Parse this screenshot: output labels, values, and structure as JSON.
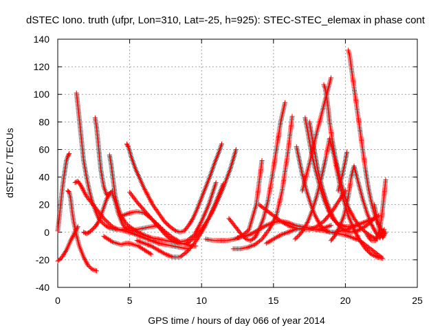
{
  "chart_data": {
    "type": "scatter",
    "title": "dSTEC Iono. truth (ufpr, Lon=310, Lat=-25, h=925): STEC-STEC_elemax in phase cont",
    "xlabel": "GPS time / hours of day 066 of year 2014",
    "ylabel": "dSTEC  / TECUs",
    "xlim": [
      0,
      25
    ],
    "ylim": [
      -40,
      140
    ],
    "xticks": [
      0,
      5,
      10,
      15,
      20,
      25
    ],
    "xtick_labels": [
      "0",
      "5",
      "10",
      "15",
      "20",
      "25"
    ],
    "yticks": [
      -40,
      -20,
      0,
      20,
      40,
      60,
      80,
      100,
      120,
      140
    ],
    "ytick_labels": [
      "-40",
      "-20",
      "0",
      "20",
      "40",
      "60",
      "80",
      "100",
      "120",
      "140"
    ],
    "grid": true,
    "marker": "plus",
    "color": "#ff0000",
    "series": [
      {
        "x": [
          0.0,
          0.1,
          0.2,
          0.3,
          0.4,
          0.5,
          0.6,
          0.7,
          0.8
        ],
        "y": [
          1,
          10,
          20,
          30,
          38,
          45,
          52,
          55,
          57
        ]
      },
      {
        "x": [
          0.0,
          0.3,
          0.6,
          0.9,
          1.2,
          1.4
        ],
        "y": [
          -21,
          -18,
          -13,
          -6,
          0,
          4
        ]
      },
      {
        "x": [
          0.7,
          0.8,
          0.9,
          1.0,
          1.1,
          1.3,
          1.5,
          1.8,
          2.1,
          2.4,
          2.7
        ],
        "y": [
          30,
          29,
          24,
          15,
          8,
          -2,
          -10,
          -18,
          -24,
          -27,
          -28
        ]
      },
      {
        "x": [
          1.3,
          1.4,
          1.5,
          1.6,
          1.7,
          1.8,
          2.0,
          2.2,
          2.4,
          2.6,
          2.8,
          3.0,
          3.3,
          3.6,
          4.0,
          4.5,
          5.0
        ],
        "y": [
          101,
          92,
          82,
          72,
          62,
          52,
          40,
          30,
          22,
          16,
          11,
          8,
          5,
          3,
          2,
          2,
          3
        ]
      },
      {
        "x": [
          1.2,
          1.4,
          1.6,
          1.8,
          2.0,
          2.3,
          2.6,
          2.9,
          3.2,
          3.5,
          3.8,
          4.2,
          4.6,
          5.0,
          5.5,
          6.0,
          6.5,
          7.0,
          7.5,
          8.0,
          8.5,
          9.0
        ],
        "y": [
          36,
          37,
          34,
          30,
          26,
          22,
          18,
          14,
          10,
          7,
          4,
          2,
          1,
          0,
          -2,
          -4,
          -6,
          -8,
          -9,
          -10,
          -11,
          -12
        ]
      },
      {
        "x": [
          2.6,
          2.7,
          2.8,
          2.9,
          3.0,
          3.2,
          3.4,
          3.6,
          3.8
        ],
        "y": [
          83,
          76,
          66,
          55,
          45,
          33,
          27,
          28,
          30
        ]
      },
      {
        "x": [
          1.8,
          2.0,
          2.2,
          2.4,
          2.6,
          2.8,
          3.0,
          3.2,
          3.4,
          3.6,
          3.8,
          4.0,
          4.2,
          4.5,
          4.8,
          5.1,
          5.5,
          6.0,
          6.5,
          7.0
        ],
        "y": [
          0,
          -1,
          0,
          2,
          4,
          7,
          12,
          18,
          24,
          28,
          28,
          22,
          14,
          6,
          2,
          1,
          2,
          3,
          4,
          5
        ]
      },
      {
        "x": [
          3.6,
          3.7,
          3.8,
          3.9,
          4.0,
          4.2,
          4.4,
          4.7,
          5.0,
          5.3,
          5.6,
          6.0,
          6.5,
          7.0,
          7.5,
          8.0,
          8.5,
          9.0,
          9.3,
          9.6
        ],
        "y": [
          56,
          50,
          42,
          34,
          26,
          18,
          12,
          7,
          4,
          2,
          0,
          -2,
          -4,
          -5,
          -6,
          -7,
          -8,
          -9,
          -10,
          -10
        ]
      },
      {
        "x": [
          3.2,
          3.5,
          3.8,
          4.1,
          4.4,
          4.7,
          5.0,
          5.3,
          5.6,
          5.9,
          6.2,
          6.5
        ],
        "y": [
          -3,
          -5,
          -7,
          -8,
          -9,
          -8,
          -8,
          -9,
          -10,
          -12,
          -14,
          -16
        ]
      },
      {
        "x": [
          4.8,
          4.9,
          5.0,
          5.1,
          5.2,
          5.4,
          5.7,
          6.0,
          6.3,
          6.6,
          7.0,
          7.4,
          7.8,
          8.2,
          8.5,
          8.8,
          9.1,
          9.4,
          9.7,
          10.0,
          10.3,
          10.6,
          10.9,
          11.2,
          11.4
        ],
        "y": [
          64,
          62,
          59,
          55,
          52,
          46,
          39,
          32,
          26,
          20,
          14,
          8,
          4,
          1,
          0,
          1,
          5,
          10,
          17,
          25,
          33,
          41,
          50,
          58,
          64
        ]
      },
      {
        "x": [
          4.5,
          5.0,
          5.5,
          6.0,
          6.5,
          7.0,
          7.5,
          8.0,
          8.5,
          9.0,
          9.5,
          10.0,
          10.5,
          11.0
        ],
        "y": [
          12,
          14,
          15,
          14,
          10,
          5,
          0,
          -4,
          -7,
          -6,
          -2,
          8,
          20,
          36
        ]
      },
      {
        "x": [
          5.0,
          5.5,
          6.0,
          6.5,
          7.0,
          7.5,
          8.0,
          8.5,
          9.0,
          9.5,
          10.0,
          10.5,
          11.0,
          11.5,
          12.0,
          12.4
        ],
        "y": [
          29,
          22,
          16,
          10,
          4,
          -2,
          -6,
          -8,
          -8,
          -4,
          2,
          10,
          20,
          32,
          46,
          60
        ]
      },
      {
        "x": [
          5.5,
          6.0,
          6.5,
          7.0,
          7.5,
          8.0,
          8.5,
          9.0,
          9.5,
          10.0,
          10.5,
          11.0,
          11.5
        ],
        "y": [
          -6,
          -8,
          -10,
          -13,
          -16,
          -18,
          -18,
          -14,
          -8,
          0,
          10,
          22,
          35
        ]
      },
      {
        "x": [
          10.3,
          10.8,
          11.3,
          11.8,
          12.3,
          12.8,
          13.3,
          13.8,
          14.2
        ],
        "y": [
          -5,
          -6,
          -6,
          -6,
          -5,
          -3,
          2,
          20,
          52
        ]
      },
      {
        "x": [
          11.9,
          12.2,
          12.5,
          12.8,
          13.1,
          13.4,
          13.7,
          14.0,
          14.3,
          14.6,
          14.9,
          15.2,
          15.5,
          15.8
        ],
        "y": [
          10,
          6,
          2,
          -2,
          -5,
          -6,
          -4,
          2,
          10,
          22,
          40,
          60,
          80,
          94
        ]
      },
      {
        "x": [
          12.2,
          12.7,
          13.2,
          13.7,
          14.2,
          14.7,
          15.2,
          15.6,
          16.0,
          16.3
        ],
        "y": [
          -12,
          -12,
          -11,
          -9,
          -5,
          2,
          12,
          30,
          58,
          84
        ]
      },
      {
        "x": [
          12.5,
          13.0,
          13.5,
          14.0,
          14.5,
          15.0,
          15.5,
          16.0,
          16.5,
          17.0,
          17.5,
          18.0,
          18.5,
          19.0
        ],
        "y": [
          -4,
          -3,
          -1,
          2,
          5,
          7,
          8,
          7,
          5,
          4,
          3,
          2,
          3,
          5
        ]
      },
      {
        "x": [
          14.0,
          14.5,
          15.0,
          15.5,
          16.0,
          16.5,
          17.0,
          17.5,
          18.0,
          18.5,
          19.0,
          19.5,
          20.0
        ],
        "y": [
          20,
          16,
          12,
          8,
          5,
          3,
          2,
          2,
          4,
          8,
          14,
          22,
          30
        ]
      },
      {
        "x": [
          16.6,
          16.8,
          17.0,
          17.3,
          17.6,
          17.9,
          18.2,
          18.5,
          18.9,
          19.3,
          19.7,
          20.1,
          20.5,
          21.0,
          21.5,
          22.0,
          22.3
        ],
        "y": [
          62,
          52,
          42,
          30,
          20,
          12,
          6,
          2,
          0,
          0,
          1,
          2,
          4,
          6,
          8,
          10,
          12
        ]
      },
      {
        "x": [
          14.5,
          15.0,
          15.5,
          16.0,
          16.5,
          17.0,
          17.5,
          18.0,
          18.5,
          19.0,
          19.5,
          20.0,
          20.5,
          21.0,
          21.5,
          22.0,
          22.5
        ],
        "y": [
          -8,
          -5,
          -2,
          0,
          2,
          3,
          3,
          2,
          1,
          0,
          -1,
          -2,
          -4,
          -6,
          -10,
          -14,
          -18
        ]
      },
      {
        "x": [
          16.5,
          16.8,
          17.1,
          17.4,
          17.7,
          18.0,
          18.3,
          18.6,
          18.9,
          19.2,
          19.5,
          19.8,
          20.2,
          20.6,
          21.0,
          21.4,
          21.8,
          22.2,
          22.6
        ],
        "y": [
          -5,
          -2,
          2,
          8,
          16,
          26,
          38,
          52,
          68,
          56,
          40,
          26,
          12,
          2,
          -6,
          -12,
          -16,
          -18,
          -19
        ]
      },
      {
        "x": [
          17.2,
          17.4,
          17.6,
          17.9,
          18.2,
          18.5,
          18.8,
          19.1,
          19.5,
          20.0,
          20.5,
          21.0
        ],
        "y": [
          83,
          72,
          60,
          46,
          34,
          24,
          16,
          10,
          6,
          4,
          4,
          6
        ]
      },
      {
        "x": [
          17.5,
          17.7,
          17.9,
          18.1,
          18.4,
          18.7,
          19.0,
          19.3,
          19.6,
          20.0,
          20.4,
          20.8,
          21.2,
          21.6,
          22.0
        ],
        "y": [
          80,
          68,
          56,
          44,
          32,
          22,
          14,
          8,
          4,
          1,
          0,
          1,
          3,
          6,
          10
        ]
      },
      {
        "x": [
          18.5,
          18.6,
          18.7,
          18.8,
          18.9,
          19.1,
          19.3,
          19.6,
          19.9,
          20.2,
          20.6,
          21.0,
          21.4,
          21.8,
          22.2
        ],
        "y": [
          107,
          104,
          98,
          90,
          80,
          66,
          54,
          40,
          28,
          18,
          10,
          4,
          0,
          -3,
          -5
        ]
      },
      {
        "x": [
          17.0,
          17.5,
          18.0,
          18.5,
          18.7,
          18.8,
          18.9,
          19.0
        ],
        "y": [
          30,
          50,
          72,
          92,
          100,
          104,
          108,
          112
        ]
      },
      {
        "x": [
          20.2,
          20.3,
          20.4,
          20.6,
          20.8,
          21.0,
          21.2,
          21.4,
          21.6,
          21.8,
          22.0,
          22.2,
          22.4,
          22.6
        ],
        "y": [
          132,
          128,
          120,
          105,
          90,
          75,
          60,
          45,
          32,
          22,
          14,
          8,
          4,
          0
        ]
      },
      {
        "x": [
          19.0,
          19.3,
          19.6,
          19.9,
          20.2,
          20.4,
          20.6,
          20.9,
          21.2,
          21.5,
          21.8,
          22.1,
          22.4,
          22.7
        ],
        "y": [
          -6,
          -2,
          4,
          12,
          26,
          40,
          48,
          36,
          24,
          14,
          6,
          0,
          -4,
          2
        ]
      },
      {
        "x": [
          19.5,
          19.8,
          20.0,
          20.1
        ],
        "y": [
          30,
          42,
          52,
          58
        ]
      },
      {
        "x": [
          21.5,
          21.8,
          22.1,
          22.4,
          22.6,
          22.8
        ],
        "y": [
          -2,
          -6,
          -6,
          2,
          18,
          38
        ]
      },
      {
        "x": [
          22.0,
          22.2,
          22.4,
          22.6,
          22.8
        ],
        "y": [
          20,
          10,
          0,
          -4,
          0
        ]
      }
    ]
  }
}
